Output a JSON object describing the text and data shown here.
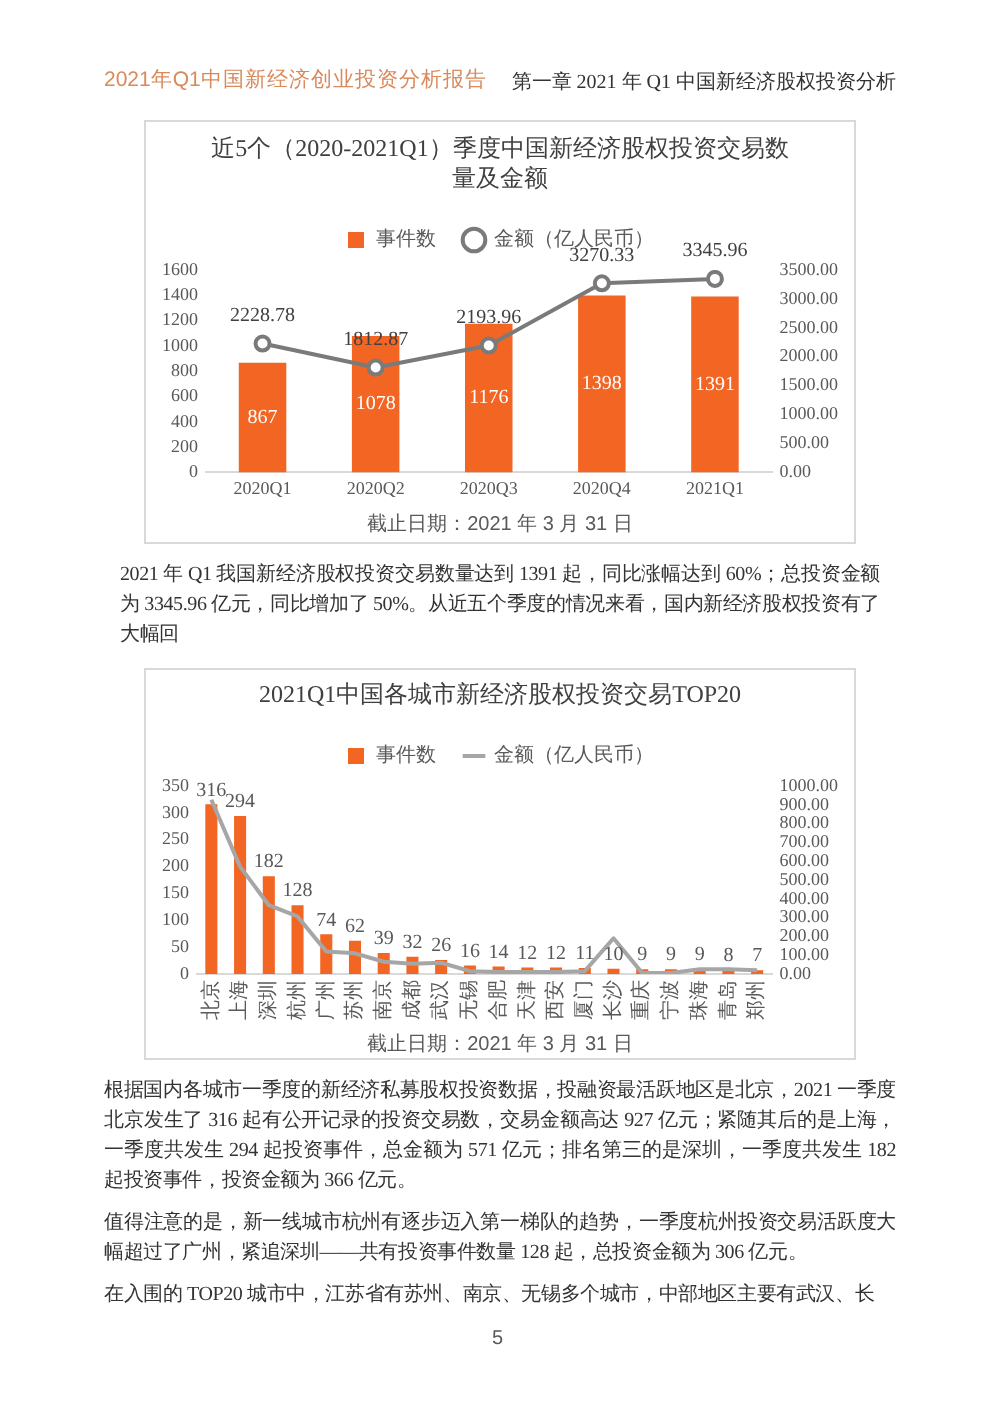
{
  "chart_data": [
    {
      "type": "bar",
      "title": "近5个（2020-2021Q1）季度中国新经济股权投资交易数量及金额",
      "categories": [
        "2020Q1",
        "2020Q2",
        "2020Q3",
        "2020Q4",
        "2021Q1"
      ],
      "series": [
        {
          "name": "事件数",
          "color": "#f26522",
          "values": [
            867,
            1078,
            1176,
            1398,
            1391
          ]
        },
        {
          "name": "金额（亿人民币）",
          "type": "line",
          "axis": "y2",
          "color": "#7a7a7a",
          "values": [
            2228.78,
            1812.87,
            2193.96,
            3270.33,
            3345.96
          ]
        }
      ],
      "ylim": [
        0,
        1600
      ],
      "yticks": [
        0,
        200,
        400,
        600,
        800,
        1000,
        1200,
        1400,
        1600
      ],
      "y2lim": [
        0,
        3500
      ],
      "y2ticks": [
        {
          "value": 0,
          "label": "0.00"
        },
        {
          "value": 500,
          "label": "500.00"
        },
        {
          "value": 1000,
          "label": "1000.00"
        },
        {
          "value": 1500,
          "label": "1500.00"
        },
        {
          "value": 2000,
          "label": "2000.00"
        },
        {
          "value": 2500,
          "label": "2500.00"
        },
        {
          "value": 3000,
          "label": "3000.00"
        },
        {
          "value": 3500,
          "label": "3500.00"
        }
      ],
      "data_labels": true,
      "legend": "top",
      "grid": false,
      "marker": "circle",
      "annotations": [
        "2021年Q1中国新经济创业投资分析报告",
        "第一章 2021 年 Q1 中国新经济股权投资分析",
        "截止日期：2021 年 3 月 31 日",
        "2021 年 Q1 我国新经济股权投资交易数量达到 1391 起，同比涨幅达到 60%；总投资金额为 3345.96 亿元，同比增加了 50%。从近五个季度的情况来看，国内新经济股权投资有了大幅回"
      ]
    },
    {
      "type": "bar",
      "title": "2021Q1中国各城市新经济股权投资交易TOP20",
      "categories": [
        "北京",
        "上海",
        "深圳",
        "杭州",
        "广州",
        "苏州",
        "南京",
        "成都",
        "武汉",
        "无锡",
        "合肥",
        "天津",
        "西安",
        "厦门",
        "长沙",
        "重庆",
        "宁波",
        "珠海",
        "青岛",
        "郑州"
      ],
      "series": [
        {
          "name": "事件数",
          "color": "#f26522",
          "values": [
            316,
            294,
            182,
            128,
            74,
            62,
            39,
            32,
            26,
            16,
            14,
            12,
            12,
            11,
            10,
            9,
            9,
            9,
            8,
            7
          ],
          "value_labels": [
            "316",
            "294",
            "182",
            "128",
            "74",
            "62",
            "39",
            "32",
            "26",
            "16",
            "14",
            "12",
            "12",
            "11",
            "10",
            "9",
            "9",
            "9",
            "8",
            "7"
          ]
        },
        {
          "name": "金额（亿人民币）",
          "type": "line",
          "axis": "y2",
          "color": "#a6a6a6",
          "values": [
            927,
            571,
            366,
            306,
            120,
            110,
            65,
            55,
            60,
            15,
            10,
            10,
            10,
            15,
            190,
            5,
            5,
            25,
            25,
            20
          ]
        }
      ],
      "ylim": [
        0,
        350
      ],
      "yticks": [
        0,
        50,
        100,
        150,
        200,
        250,
        300,
        350
      ],
      "y2lim": [
        0,
        1000
      ],
      "y2ticks": [
        {
          "value": 0,
          "label": "0.00"
        },
        {
          "value": 100,
          "label": "100.00"
        },
        {
          "value": 200,
          "label": "200.00"
        },
        {
          "value": 300,
          "label": "300.00"
        },
        {
          "value": 400,
          "label": "400.00"
        },
        {
          "value": 500,
          "label": "500.00"
        },
        {
          "value": 600,
          "label": "600.00"
        },
        {
          "value": 700,
          "label": "700.00"
        },
        {
          "value": 800,
          "label": "800.00"
        },
        {
          "value": 900,
          "label": "900.00"
        },
        {
          "value": 1000,
          "label": "1000.00"
        }
      ],
      "legend": "top",
      "grid": false,
      "marker": "none",
      "annotations": [
        "截止日期：2021 年 3 月 31 日",
        "根据国内各城市一季度的新经济私募股权投资数据，投融资最活跃地区是北京，2021 一季度北京发生了 316 起有公开记录的投资交易数，交易金额高达 927 亿元；紧随其后的是上海，一季度共发生 294 起投资事件，总金额为 571 亿元；排名第三的是深圳，一季度共发生 182 起投资事件，投资金额为 366 亿元。",
        "值得注意的是，新一线城市杭州有逐步迈入第一梯队的趋势，一季度杭州投资交易活跃度大幅超过了广州，紧追深圳——共有投资事件数量 128 起，总投资金额为 306 亿元。",
        "在入围的 TOP20 城市中，江苏省有苏州、南京、无锡多个城市，中部地区主要有武汉、长",
        "5"
      ]
    }
  ]
}
